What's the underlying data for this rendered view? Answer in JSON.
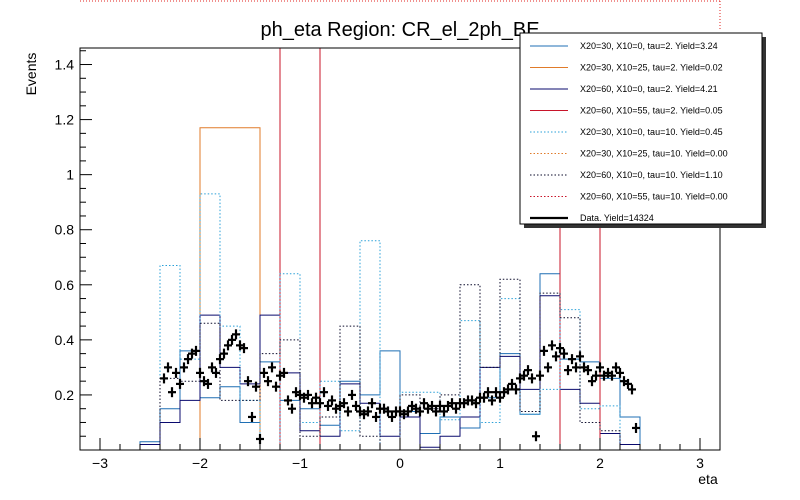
{
  "chart_data": {
    "type": "histogram",
    "title": "ph_eta Region: CR_el_2ph_BE",
    "xlabel": "eta",
    "ylabel": "Events",
    "xlim": [
      -3.2,
      3.2
    ],
    "ylim": [
      0,
      1.46
    ],
    "xticks": [
      "−3",
      "−2",
      "−1",
      "0",
      "1",
      "2",
      "3"
    ],
    "yticks": [
      "0.2",
      "0.4",
      "0.6",
      "0.8",
      "1",
      "1.2",
      "1.4"
    ],
    "bin_edges": [
      -2.6,
      -2.4,
      -2.2,
      -2.0,
      -1.8,
      -1.6,
      -1.4,
      -1.2,
      -1.0,
      -0.8,
      -0.6,
      -0.4,
      -0.2,
      0.0,
      0.2,
      0.4,
      0.6,
      0.8,
      1.0,
      1.2,
      1.4,
      1.6,
      1.8,
      2.0,
      2.2,
      2.4,
      2.6
    ],
    "legend_position": "top-right",
    "series": [
      {
        "name": "X20=30, X10=0, tau=2. Yield=3.24",
        "color": "#1f6fb4",
        "dash": "solid",
        "values": [
          0.03,
          0.15,
          0.36,
          0.19,
          0.23,
          0.1,
          0.32,
          0.18,
          0.15,
          0.09,
          0.25,
          0.2,
          0.36,
          0.14,
          0.06,
          0.12,
          0.08,
          0.19,
          0.35,
          0.13,
          0.64,
          0.33,
          0.32,
          0.26,
          0.12,
          0
        ]
      },
      {
        "name": "X20=30, X10=25, tau=2. Yield=0.02",
        "color": "#e07b2a",
        "dash": "solid",
        "values": [
          0,
          0,
          0,
          1.17,
          1.17,
          1.17,
          0,
          0,
          0,
          0,
          0,
          0,
          0,
          0,
          0,
          0,
          0,
          0,
          0,
          0,
          0,
          0,
          0,
          0,
          0,
          0
        ]
      },
      {
        "name": "X20=60, X10=0, tau=2. Yield=4.21",
        "color": "#0a0a6e",
        "dash": "solid",
        "values": [
          0.02,
          0.1,
          0.18,
          0.49,
          0.3,
          0.24,
          0.49,
          0.28,
          0.07,
          0.05,
          0.24,
          0.17,
          0.05,
          0.12,
          0.01,
          0.05,
          0.12,
          0.3,
          0.34,
          0.22,
          0.56,
          0.22,
          0.17,
          0.06,
          0.02,
          0
        ]
      },
      {
        "name": "X20=60, X10=55, tau=2. Yield=0.05",
        "color": "#c8142a",
        "dash": "solid",
        "values": [
          0,
          0,
          0,
          0,
          0,
          0,
          0,
          1.46,
          1.46,
          0,
          0,
          0,
          0,
          0,
          0,
          0,
          0,
          0,
          0,
          0,
          0,
          1.46,
          1.46,
          0,
          0,
          0
        ]
      },
      {
        "name": "X20=30, X10=0, tau=10. Yield=0.45",
        "color": "#2aa0d8",
        "dash": "dotted",
        "values": [
          0,
          0.67,
          0.33,
          0.93,
          0.45,
          0.18,
          0,
          0.64,
          0.1,
          0.25,
          0.07,
          0.76,
          0,
          0.21,
          0.21,
          0.11,
          0.47,
          0.1,
          0.55,
          0.13,
          0.22,
          0.51,
          0.15,
          0.16,
          0,
          0
        ]
      },
      {
        "name": "X20=30, X10=25, tau=10. Yield=0.00",
        "color": "#e07b2a",
        "dash": "dotted",
        "values": [
          0,
          0,
          0,
          0,
          0,
          0,
          0,
          0,
          0,
          0,
          0,
          0,
          0,
          0,
          0,
          0,
          0,
          0,
          0,
          0,
          0,
          0,
          0,
          0,
          0,
          0
        ]
      },
      {
        "name": "X20=60, X10=0, tau=10. Yield=1.10",
        "color": "#0a0a2a",
        "dash": "dotted",
        "values": [
          0,
          0.26,
          0.25,
          0.46,
          0.18,
          0.18,
          0.35,
          0.4,
          0.05,
          0.12,
          0.45,
          0.05,
          0,
          0.2,
          0.15,
          0.2,
          0.6,
          0.3,
          0.62,
          0.14,
          0.57,
          0.48,
          0.1,
          0.07,
          0,
          0
        ]
      },
      {
        "name": "X20=60, X10=55, tau=10. Yield=0.00",
        "color": "#c8142a",
        "dash": "dotted",
        "values": [
          0,
          0,
          0,
          0,
          0,
          0,
          0,
          0,
          0,
          0,
          0,
          0,
          0,
          0,
          0,
          0,
          0,
          0,
          0,
          0,
          0,
          0,
          0,
          0,
          0,
          0
        ]
      },
      {
        "name": "Data. Yield=14324",
        "color": "#000000",
        "dash": "marker"
      }
    ],
    "data_points": {
      "x": [
        -2.36,
        -2.32,
        -2.28,
        -2.24,
        -2.2,
        -2.16,
        -2.12,
        -2.08,
        -2.04,
        -2.0,
        -1.96,
        -1.92,
        -1.88,
        -1.84,
        -1.8,
        -1.76,
        -1.72,
        -1.68,
        -1.64,
        -1.6,
        -1.56,
        -1.52,
        -1.48,
        -1.44,
        -1.4,
        -1.36,
        -1.32,
        -1.28,
        -1.24,
        -1.2,
        -1.16,
        -1.12,
        -1.08,
        -1.04,
        -1.0,
        -0.96,
        -0.92,
        -0.88,
        -0.84,
        -0.8,
        -0.76,
        -0.72,
        -0.68,
        -0.64,
        -0.6,
        -0.56,
        -0.52,
        -0.48,
        -0.44,
        -0.4,
        -0.36,
        -0.32,
        -0.28,
        -0.24,
        -0.2,
        -0.16,
        -0.12,
        -0.08,
        -0.04,
        0.0,
        0.04,
        0.08,
        0.12,
        0.16,
        0.2,
        0.24,
        0.28,
        0.32,
        0.36,
        0.4,
        0.44,
        0.48,
        0.52,
        0.56,
        0.6,
        0.64,
        0.68,
        0.72,
        0.76,
        0.8,
        0.84,
        0.88,
        0.92,
        0.96,
        1.0,
        1.04,
        1.08,
        1.12,
        1.16,
        1.2,
        1.24,
        1.28,
        1.32,
        1.36,
        1.4,
        1.44,
        1.48,
        1.52,
        1.56,
        1.6,
        1.64,
        1.68,
        1.72,
        1.76,
        1.8,
        1.84,
        1.88,
        1.92,
        1.96,
        2.0,
        2.04,
        2.08,
        2.12,
        2.16,
        2.2,
        2.24,
        2.28,
        2.32,
        2.36
      ],
      "y": [
        0.26,
        0.3,
        0.21,
        0.28,
        0.24,
        0.3,
        0.33,
        0.35,
        0.36,
        0.28,
        0.25,
        0.24,
        0.3,
        0.28,
        0.33,
        0.35,
        0.38,
        0.4,
        0.42,
        0.38,
        0.37,
        0.25,
        0.12,
        0.23,
        0.04,
        0.28,
        0.25,
        0.3,
        0.23,
        0.27,
        0.28,
        0.18,
        0.15,
        0.21,
        0.2,
        0.19,
        0.2,
        0.17,
        0.19,
        0.17,
        0.21,
        0.16,
        0.18,
        0.15,
        0.16,
        0.17,
        0.14,
        0.2,
        0.16,
        0.14,
        0.13,
        0.14,
        0.17,
        0.12,
        0.15,
        0.15,
        0.14,
        0.12,
        0.14,
        0.14,
        0.13,
        0.14,
        0.16,
        0.15,
        0.14,
        0.17,
        0.15,
        0.16,
        0.14,
        0.16,
        0.14,
        0.16,
        0.17,
        0.15,
        0.17,
        0.17,
        0.18,
        0.18,
        0.17,
        0.19,
        0.19,
        0.21,
        0.18,
        0.21,
        0.19,
        0.21,
        0.22,
        0.24,
        0.22,
        0.26,
        0.27,
        0.29,
        0.26,
        0.05,
        0.27,
        0.36,
        0.3,
        0.38,
        0.34,
        0.37,
        0.35,
        0.29,
        0.33,
        0.3,
        0.34,
        0.3,
        0.29,
        0.25,
        0.27,
        0.3,
        0.27,
        0.28,
        0.27,
        0.3,
        0.28,
        0.25,
        0.24,
        0.22,
        0.08
      ]
    }
  }
}
